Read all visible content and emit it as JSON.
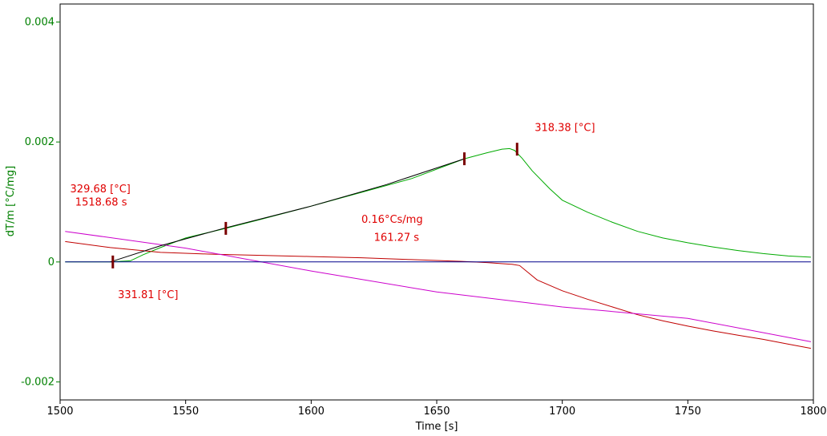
{
  "chart_data": {
    "type": "line",
    "title": "",
    "xlabel": "Time [s]",
    "ylabel": "dT/m  [°C/mg]",
    "xlim": [
      1500,
      1800
    ],
    "ylim": [
      -0.0023,
      0.0043
    ],
    "x_ticks": [
      1500,
      1550,
      1600,
      1650,
      1700,
      1750,
      1800
    ],
    "x_tick_labels": [
      "1500",
      "1550",
      "1600",
      "1650",
      "1700",
      "1750",
      "1800"
    ],
    "y_ticks": [
      0.004,
      0.002,
      0,
      -0.002
    ],
    "y_tick_labels": [
      "0.004",
      "0.002",
      "0",
      "-0.002"
    ],
    "grid": false,
    "colors": {
      "axis_y": "#008000",
      "axis_x": "#000000",
      "annotation": "#e00000",
      "marker": "#7a0000"
    },
    "series": [
      {
        "color": "#00aa00",
        "x": [
          1502,
          1520,
          1528,
          1530,
          1533,
          1540,
          1550,
          1566,
          1580,
          1600,
          1620,
          1640,
          1661,
          1670,
          1676,
          1679,
          1681,
          1684,
          1688,
          1695,
          1700,
          1710,
          1720,
          1730,
          1740,
          1750,
          1760,
          1770,
          1780,
          1790,
          1799
        ],
        "y": [
          0,
          0,
          2e-05,
          6e-05,
          0.00012,
          0.00024,
          0.0004,
          0.00056,
          0.00071,
          0.00093,
          0.00116,
          0.00139,
          0.00172,
          0.00182,
          0.00188,
          0.00189,
          0.00186,
          0.00173,
          0.00152,
          0.00122,
          0.00103,
          0.00083,
          0.00066,
          0.00051,
          0.0004,
          0.00032,
          0.00025,
          0.00019,
          0.00014,
          0.0001,
          8e-05
        ]
      },
      {
        "color": "#c00000",
        "x": [
          1502,
          1520,
          1540,
          1560,
          1580,
          1600,
          1620,
          1640,
          1660,
          1670,
          1680,
          1683,
          1690,
          1700,
          1710,
          1720,
          1730,
          1740,
          1750,
          1760,
          1770,
          1780,
          1790,
          1799
        ],
        "y": [
          0.00034,
          0.00024,
          0.00016,
          0.00013,
          0.00011,
          9e-05,
          7e-05,
          4e-05,
          1e-05,
          -1e-05,
          -4e-05,
          -6e-05,
          -0.0003,
          -0.00048,
          -0.00062,
          -0.00075,
          -0.00088,
          -0.00098,
          -0.00107,
          -0.00115,
          -0.00122,
          -0.00129,
          -0.00137,
          -0.00144
        ]
      },
      {
        "color": "#cc00cc",
        "x": [
          1502,
          1550,
          1600,
          1650,
          1700,
          1750,
          1799
        ],
        "y": [
          0.00051,
          0.00023,
          -0.00015,
          -0.0005,
          -0.00075,
          -0.00094,
          -0.00133
        ]
      },
      {
        "color": "#00008b",
        "x": [
          1502,
          1799
        ],
        "y": [
          0,
          0
        ]
      },
      {
        "color": "#000000",
        "x": [
          1520,
          1540,
          1566,
          1600,
          1630,
          1661
        ],
        "y": [
          0,
          0.00027,
          0.00057,
          0.00093,
          0.00129,
          0.00172
        ]
      }
    ],
    "markers": [
      {
        "x": 1521,
        "y": 0
      },
      {
        "x": 1566,
        "y": 0.00056
      },
      {
        "x": 1661,
        "y": 0.00172
      },
      {
        "x": 1682,
        "y": 0.00188
      }
    ],
    "annotations": [
      {
        "text": "318.38 [°C]",
        "x": 1689,
        "y": 0.00218
      },
      {
        "text": "329.68 [°C]",
        "x": 1504,
        "y": 0.00116
      },
      {
        "text": "1518.68 s",
        "x": 1506,
        "y": 0.00094
      },
      {
        "text": "0.16°Cs/mg",
        "x": 1620,
        "y": 0.00065
      },
      {
        "text": "161.27 s",
        "x": 1625,
        "y": 0.00035
      },
      {
        "text": "331.81 [°C]",
        "x": 1523,
        "y": -0.0006
      }
    ]
  }
}
